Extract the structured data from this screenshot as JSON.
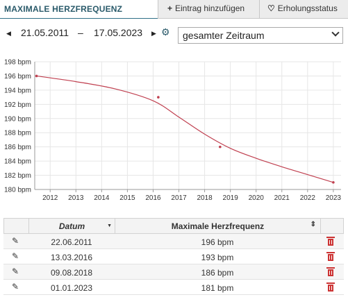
{
  "tabs": {
    "title": "MAXIMALE HERZFREQUENZ",
    "add_label": "Eintrag hinzufügen",
    "recovery_label": "Erholungsstatus",
    "add_icon": "plus-icon",
    "recovery_icon": "heart-pulse-icon"
  },
  "range": {
    "start": "21.05.2011",
    "end": "17.05.2023",
    "separator": "–",
    "period": "gesamter Zeitraum"
  },
  "chart_data": {
    "type": "scatter",
    "title": "",
    "xlabel": "",
    "ylabel": "",
    "y_unit": "bpm",
    "xlim": [
      2011.4,
      2023.3
    ],
    "ylim": [
      180,
      198
    ],
    "x_ticks": [
      "2012",
      "2013",
      "2014",
      "2015",
      "2016",
      "2017",
      "2018",
      "2019",
      "2020",
      "2021",
      "2022",
      "2023"
    ],
    "y_ticks": [
      "198 bpm",
      "196 bpm",
      "194 bpm",
      "192 bpm",
      "190 bpm",
      "188 bpm",
      "186 bpm",
      "184 bpm",
      "182 bpm",
      "180 bpm"
    ],
    "points": [
      {
        "x": 2011.47,
        "y": 196
      },
      {
        "x": 2016.2,
        "y": 193
      },
      {
        "x": 2018.6,
        "y": 186
      },
      {
        "x": 2023.0,
        "y": 181
      }
    ],
    "trend": [
      {
        "x": 2011.47,
        "y": 196
      },
      {
        "x": 2013.0,
        "y": 195.2
      },
      {
        "x": 2014.5,
        "y": 194.2
      },
      {
        "x": 2016.0,
        "y": 192.5
      },
      {
        "x": 2017.0,
        "y": 190.2
      },
      {
        "x": 2018.0,
        "y": 187.8
      },
      {
        "x": 2019.0,
        "y": 185.8
      },
      {
        "x": 2020.0,
        "y": 184.4
      },
      {
        "x": 2021.0,
        "y": 183.2
      },
      {
        "x": 2022.0,
        "y": 182.1
      },
      {
        "x": 2023.0,
        "y": 181
      }
    ],
    "grid": true,
    "line_color": "#c04050"
  },
  "table": {
    "col_date": "Datum",
    "col_hr": "Maximale Herzfrequenz",
    "rows": [
      {
        "date": "22.06.2011",
        "value": "196 bpm"
      },
      {
        "date": "13.03.2016",
        "value": "193 bpm"
      },
      {
        "date": "09.08.2018",
        "value": "186 bpm"
      },
      {
        "date": "01.01.2023",
        "value": "181 bpm"
      }
    ]
  }
}
